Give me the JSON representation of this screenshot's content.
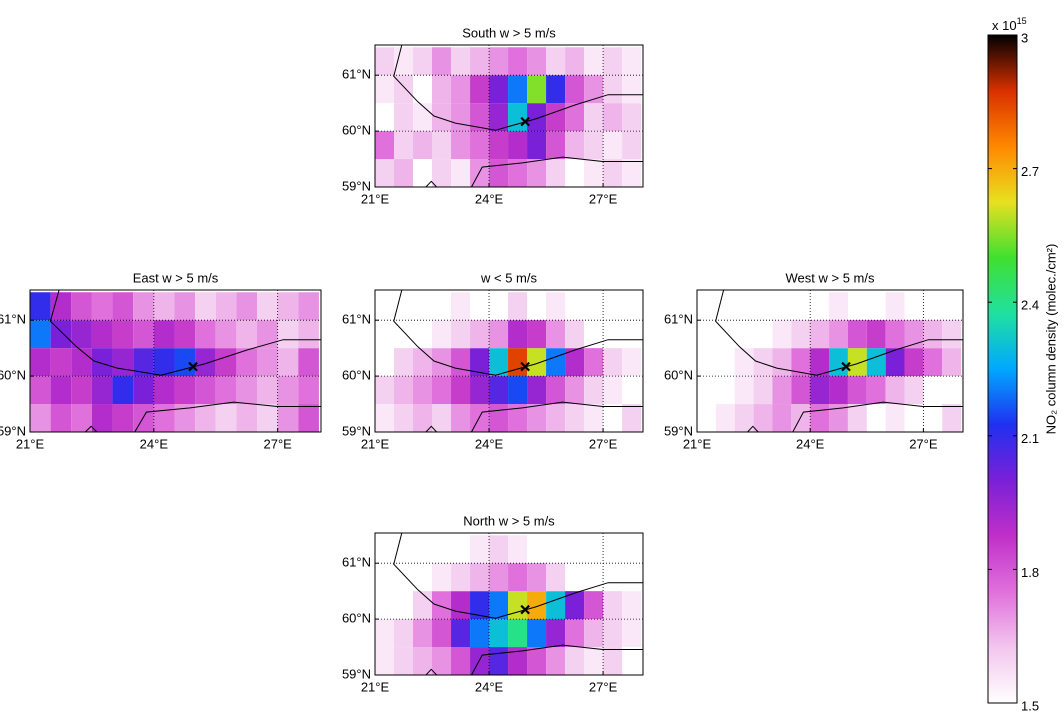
{
  "chart_data": [
    {
      "type": "heatmap",
      "title": "South w > 5 m/s",
      "xlim": [
        21,
        28.05
      ],
      "ylim": [
        59,
        61.54
      ],
      "xticks": [
        {
          "value": 21,
          "label": "21°E"
        },
        {
          "value": 24,
          "label": "24°E"
        },
        {
          "value": 27,
          "label": "27°E"
        }
      ],
      "yticks": [
        {
          "value": 59,
          "label": "59°N"
        },
        {
          "value": 60,
          "label": "60°N"
        },
        {
          "value": 61,
          "label": "61°N"
        }
      ],
      "grid": true,
      "site": [
        24.95,
        60.17
      ],
      "lon_bins": [
        21,
        21.5,
        22,
        22.5,
        23,
        23.5,
        24,
        24.5,
        25,
        25.5,
        26,
        26.5,
        27,
        27.5,
        28
      ],
      "lat_bins": [
        59,
        59.5,
        60,
        60.5,
        61,
        61.5
      ],
      "values": [
        [
          1.6,
          1.65,
          null,
          1.6,
          1.55,
          1.7,
          1.8,
          1.75,
          1.7,
          1.6,
          null,
          1.55,
          1.6,
          1.55
        ],
        [
          1.75,
          1.6,
          1.65,
          1.6,
          1.7,
          1.75,
          1.85,
          1.9,
          2.0,
          1.8,
          1.65,
          1.6,
          1.55,
          1.6
        ],
        [
          null,
          1.6,
          1.55,
          1.65,
          1.7,
          1.8,
          1.95,
          2.3,
          2.0,
          1.85,
          1.75,
          1.6,
          1.65,
          1.6
        ],
        [
          1.55,
          1.6,
          null,
          1.65,
          1.7,
          1.85,
          2.0,
          2.2,
          2.55,
          2.1,
          1.8,
          1.7,
          1.6,
          1.55
        ],
        [
          1.6,
          1.55,
          1.6,
          1.7,
          1.6,
          1.65,
          1.7,
          1.75,
          1.7,
          1.6,
          1.65,
          1.55,
          1.6,
          1.55
        ]
      ]
    },
    {
      "type": "heatmap",
      "title": "East w > 5 m/s",
      "xlim": [
        21,
        28.05
      ],
      "ylim": [
        59,
        61.54
      ],
      "xticks": [
        {
          "value": 21,
          "label": "21°E"
        },
        {
          "value": 24,
          "label": "24°E"
        },
        {
          "value": 27,
          "label": "27°E"
        }
      ],
      "yticks": [
        {
          "value": 59,
          "label": "59°N"
        },
        {
          "value": 60,
          "label": "60°N"
        },
        {
          "value": 61,
          "label": "61°N"
        }
      ],
      "grid": true,
      "site": [
        24.95,
        60.17
      ],
      "lon_bins": [
        21,
        21.5,
        22,
        22.5,
        23,
        23.5,
        24,
        24.5,
        25,
        25.5,
        26,
        26.5,
        27,
        27.5,
        28
      ],
      "lat_bins": [
        59,
        59.5,
        60,
        60.5,
        61,
        61.5
      ],
      "values": [
        [
          1.7,
          1.8,
          1.75,
          1.9,
          1.85,
          1.8,
          1.75,
          1.7,
          1.65,
          1.6,
          1.65,
          1.6,
          1.7,
          1.8
        ],
        [
          1.8,
          1.9,
          1.85,
          1.95,
          2.1,
          2.0,
          1.9,
          1.85,
          1.8,
          1.75,
          1.7,
          1.65,
          1.7,
          1.75
        ],
        [
          1.9,
          1.85,
          1.9,
          2.0,
          1.95,
          2.05,
          2.1,
          2.15,
          1.95,
          1.85,
          1.75,
          1.7,
          1.65,
          1.8
        ],
        [
          2.2,
          2.0,
          1.95,
          1.9,
          1.85,
          1.8,
          1.9,
          1.85,
          1.75,
          1.7,
          1.65,
          1.7,
          1.6,
          1.65
        ],
        [
          2.1,
          1.9,
          1.8,
          1.75,
          1.8,
          1.7,
          1.65,
          1.7,
          1.6,
          1.65,
          1.7,
          1.6,
          1.65,
          1.7
        ]
      ]
    },
    {
      "type": "heatmap",
      "title": "w < 5 m/s",
      "xlim": [
        21,
        28.05
      ],
      "ylim": [
        59,
        61.54
      ],
      "xticks": [
        {
          "value": 21,
          "label": "21°E"
        },
        {
          "value": 24,
          "label": "24°E"
        },
        {
          "value": 27,
          "label": "27°E"
        }
      ],
      "yticks": [
        {
          "value": 59,
          "label": "59°N"
        },
        {
          "value": 60,
          "label": "60°N"
        },
        {
          "value": 61,
          "label": "61°N"
        }
      ],
      "grid": true,
      "site": [
        24.95,
        60.17
      ],
      "lon_bins": [
        21,
        21.5,
        22,
        22.5,
        23,
        23.5,
        24,
        24.5,
        25,
        25.5,
        26,
        26.5,
        27,
        27.5,
        28
      ],
      "lat_bins": [
        59,
        59.5,
        60,
        60.5,
        61,
        61.5
      ],
      "values": [
        [
          1.55,
          1.6,
          1.65,
          1.6,
          1.7,
          1.75,
          1.8,
          1.75,
          1.7,
          1.65,
          1.6,
          1.55,
          null,
          1.6
        ],
        [
          1.6,
          1.65,
          1.7,
          1.75,
          1.85,
          1.95,
          2.05,
          2.15,
          1.95,
          1.8,
          1.7,
          1.6,
          1.55,
          null
        ],
        [
          null,
          1.6,
          1.65,
          1.7,
          1.8,
          2.0,
          2.3,
          2.85,
          2.6,
          2.2,
          1.9,
          1.75,
          1.6,
          1.55
        ],
        [
          null,
          null,
          null,
          1.55,
          1.6,
          1.65,
          1.7,
          1.9,
          1.85,
          1.7,
          1.6,
          null,
          null,
          null
        ],
        [
          null,
          null,
          null,
          null,
          1.55,
          null,
          null,
          1.6,
          null,
          1.55,
          null,
          null,
          null,
          null
        ]
      ]
    },
    {
      "type": "heatmap",
      "title": "West w > 5 m/s",
      "xlim": [
        21,
        28.05
      ],
      "ylim": [
        59,
        61.54
      ],
      "xticks": [
        {
          "value": 21,
          "label": "21°E"
        },
        {
          "value": 24,
          "label": "24°E"
        },
        {
          "value": 27,
          "label": "27°E"
        }
      ],
      "yticks": [
        {
          "value": 59,
          "label": "59°N"
        },
        {
          "value": 60,
          "label": "60°N"
        },
        {
          "value": 61,
          "label": "61°N"
        }
      ],
      "grid": true,
      "site": [
        24.95,
        60.17
      ],
      "lon_bins": [
        21,
        21.5,
        22,
        22.5,
        23,
        23.5,
        24,
        24.5,
        25,
        25.5,
        26,
        26.5,
        27,
        27.5,
        28
      ],
      "lat_bins": [
        59,
        59.5,
        60,
        60.5,
        61,
        61.5
      ],
      "values": [
        [
          null,
          1.55,
          1.6,
          1.65,
          1.7,
          1.65,
          1.75,
          1.7,
          1.6,
          null,
          1.55,
          null,
          null,
          1.6
        ],
        [
          null,
          null,
          1.55,
          1.6,
          1.7,
          1.8,
          1.95,
          1.9,
          1.8,
          1.75,
          1.65,
          1.6,
          null,
          null
        ],
        [
          null,
          null,
          1.55,
          1.6,
          1.65,
          1.75,
          1.9,
          2.3,
          2.6,
          2.3,
          2.0,
          1.85,
          1.75,
          1.65
        ],
        [
          null,
          null,
          null,
          null,
          1.55,
          1.6,
          1.65,
          1.7,
          1.8,
          1.85,
          1.75,
          1.7,
          1.65,
          1.6
        ],
        [
          null,
          null,
          null,
          null,
          null,
          null,
          null,
          1.55,
          null,
          null,
          1.55,
          null,
          null,
          null
        ]
      ]
    },
    {
      "type": "heatmap",
      "title": "North w > 5 m/s",
      "xlim": [
        21,
        28.05
      ],
      "ylim": [
        59,
        61.54
      ],
      "xticks": [
        {
          "value": 21,
          "label": "21°E"
        },
        {
          "value": 24,
          "label": "24°E"
        },
        {
          "value": 27,
          "label": "27°E"
        }
      ],
      "yticks": [
        {
          "value": 59,
          "label": "59°N"
        },
        {
          "value": 60,
          "label": "60°N"
        },
        {
          "value": 61,
          "label": "61°N"
        }
      ],
      "grid": true,
      "site": [
        24.95,
        60.17
      ],
      "lon_bins": [
        21,
        21.5,
        22,
        22.5,
        23,
        23.5,
        24,
        24.5,
        25,
        25.5,
        26,
        26.5,
        27,
        27.5,
        28
      ],
      "lat_bins": [
        59,
        59.5,
        60,
        60.5,
        61,
        61.5
      ],
      "values": [
        [
          1.55,
          1.6,
          1.65,
          1.7,
          1.8,
          1.95,
          2.05,
          1.9,
          1.8,
          1.7,
          1.6,
          1.55,
          1.6,
          null
        ],
        [
          1.55,
          1.6,
          1.7,
          1.8,
          2.05,
          2.2,
          2.3,
          2.4,
          2.2,
          1.95,
          1.75,
          1.65,
          1.6,
          1.55
        ],
        [
          null,
          null,
          1.6,
          1.75,
          1.9,
          2.1,
          2.2,
          2.6,
          2.7,
          2.3,
          2.0,
          1.8,
          1.6,
          1.55
        ],
        [
          null,
          null,
          null,
          1.55,
          1.6,
          1.65,
          1.7,
          1.75,
          1.7,
          1.6,
          null,
          null,
          null,
          null
        ],
        [
          null,
          null,
          null,
          null,
          null,
          1.55,
          1.6,
          1.55,
          null,
          null,
          null,
          null,
          null,
          null
        ]
      ]
    },
    {
      "type": "colorbar",
      "label": "NO₂ column density (molec./cm²)",
      "multiplier": "x 10",
      "power": "15",
      "lim": [
        1.5,
        3
      ],
      "ticks": [
        1.5,
        1.8,
        2.1,
        2.4,
        2.7,
        3
      ],
      "colors": [
        "#ffffff",
        "#f3c6ee",
        "#e070dc",
        "#c030c8",
        "#7a20d8",
        "#2030f0",
        "#00a8ff",
        "#20e0a0",
        "#40e030",
        "#e8e020",
        "#ff8800",
        "#d83000",
        "#000000"
      ]
    }
  ]
}
